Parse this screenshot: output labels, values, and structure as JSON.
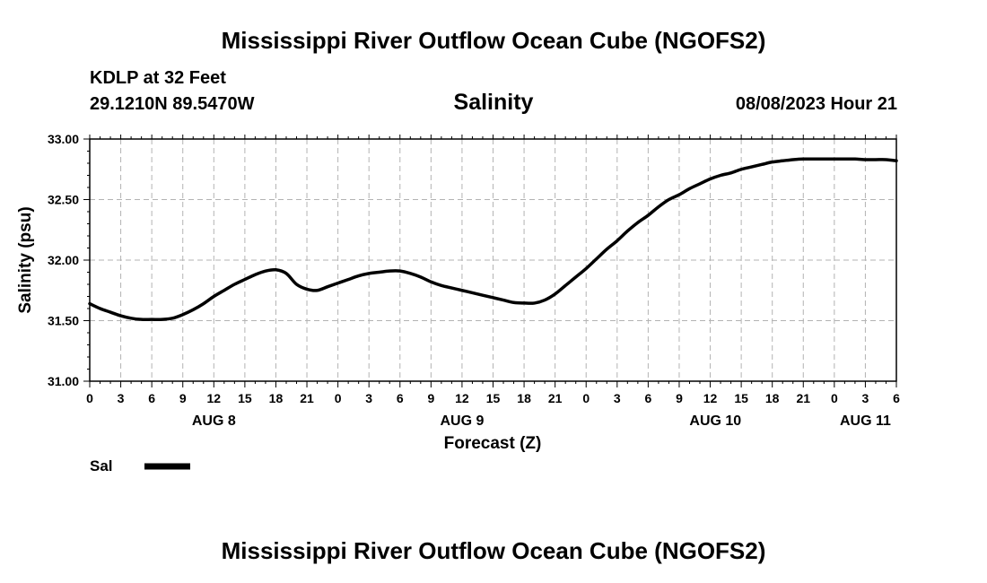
{
  "header": {
    "title": "Mississippi River Outflow Ocean Cube (NGOFS2)",
    "station": "KDLP at 32 Feet",
    "coordinates": "29.1210N  89.5470W",
    "variable": "Salinity",
    "datetime": "08/08/2023 Hour 21"
  },
  "footer": {
    "title": "Mississippi River Outflow Ocean Cube (NGOFS2)"
  },
  "chart_data": {
    "type": "line",
    "title": "Salinity",
    "xlabel": "Forecast (Z)",
    "ylabel": "Salinity (psu)",
    "xlim": [
      0,
      78
    ],
    "ylim": [
      31.0,
      33.0
    ],
    "grid": true,
    "y_ticks": [
      "31.00",
      "31.50",
      "32.00",
      "32.50",
      "33.00"
    ],
    "x_tick_labels": [
      "0",
      "3",
      "6",
      "9",
      "12",
      "15",
      "18",
      "21",
      "0",
      "3",
      "6",
      "9",
      "12",
      "15",
      "18",
      "21",
      "0",
      "3",
      "6",
      "9",
      "12",
      "15",
      "18",
      "21",
      "0",
      "3",
      "6"
    ],
    "day_labels": [
      {
        "label": "AUG 8",
        "hour": 12
      },
      {
        "label": "AUG 9",
        "hour": 36
      },
      {
        "label": "AUG 10",
        "hour": 60.5
      },
      {
        "label": "AUG 11",
        "hour": 75
      }
    ],
    "legend": [
      {
        "name": "Sal",
        "color": "#000000"
      }
    ],
    "series": [
      {
        "name": "Sal",
        "x": [
          0,
          1,
          2,
          3,
          4,
          5,
          6,
          7,
          8,
          9,
          10,
          11,
          12,
          13,
          14,
          15,
          16,
          17,
          18,
          19,
          20,
          21,
          22,
          23,
          24,
          25,
          26,
          27,
          28,
          29,
          30,
          31,
          32,
          33,
          34,
          35,
          36,
          37,
          38,
          39,
          40,
          41,
          42,
          43,
          44,
          45,
          46,
          47,
          48,
          49,
          50,
          51,
          52,
          53,
          54,
          55,
          56,
          57,
          58,
          59,
          60,
          61,
          62,
          63,
          64,
          65,
          66,
          67,
          68,
          69,
          70,
          71,
          72,
          73,
          74,
          75,
          76,
          77,
          78
        ],
        "values": [
          31.64,
          31.6,
          31.57,
          31.54,
          31.52,
          31.51,
          31.51,
          31.51,
          31.52,
          31.55,
          31.59,
          31.64,
          31.7,
          31.75,
          31.8,
          31.84,
          31.88,
          31.91,
          31.92,
          31.89,
          31.8,
          31.76,
          31.75,
          31.78,
          31.81,
          31.84,
          31.87,
          31.89,
          31.9,
          31.91,
          31.91,
          31.89,
          31.86,
          31.82,
          31.79,
          31.77,
          31.75,
          31.73,
          31.71,
          31.69,
          31.67,
          31.65,
          31.645,
          31.645,
          31.67,
          31.72,
          31.79,
          31.86,
          31.93,
          32.01,
          32.09,
          32.16,
          32.24,
          32.31,
          32.37,
          32.44,
          32.5,
          32.54,
          32.59,
          32.63,
          32.67,
          32.7,
          32.72,
          32.75,
          32.77,
          32.79,
          32.81,
          32.82,
          32.83,
          32.835,
          32.835,
          32.835,
          32.835,
          32.835,
          32.835,
          32.83,
          32.83,
          32.83,
          32.82
        ]
      }
    ]
  }
}
